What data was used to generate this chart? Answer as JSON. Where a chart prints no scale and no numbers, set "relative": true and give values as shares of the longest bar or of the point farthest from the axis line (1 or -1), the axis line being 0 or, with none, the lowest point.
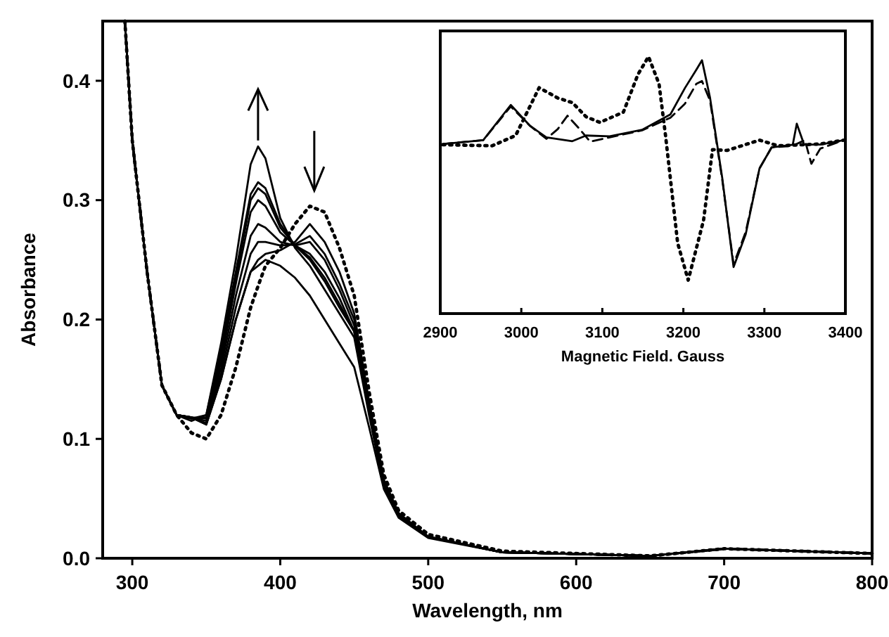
{
  "chart_data": [
    {
      "type": "line",
      "xlabel": "Wavelength, nm",
      "ylabel": "Absorbance",
      "xlim": [
        280,
        800
      ],
      "xticks": [
        300,
        400,
        500,
        600,
        700,
        800
      ],
      "ylim": [
        0,
        0.45
      ],
      "yticks": [
        {
          "value": 0,
          "label": "0.0"
        },
        0.1,
        0.2,
        0.3,
        0.4
      ],
      "grid": false,
      "x": [
        295,
        300,
        310,
        320,
        330,
        340,
        350,
        360,
        370,
        380,
        385,
        390,
        400,
        410,
        420,
        430,
        440,
        450,
        460,
        470,
        480,
        500,
        550,
        650,
        700,
        800
      ],
      "series": [
        {
          "color": "#000000",
          "line_style": "solid",
          "values": [
            0.45,
            0.35,
            0.24,
            0.145,
            0.12,
            0.115,
            0.12,
            0.18,
            0.25,
            0.33,
            0.345,
            0.335,
            0.285,
            0.26,
            0.245,
            0.225,
            0.205,
            0.185,
            0.12,
            0.06,
            0.035,
            0.018,
            0.005,
            0.002,
            0.008,
            0.004
          ]
        },
        {
          "color": "#000000",
          "line_style": "solid",
          "values": [
            0.45,
            0.35,
            0.24,
            0.145,
            0.12,
            0.117,
            0.12,
            0.175,
            0.24,
            0.305,
            0.315,
            0.31,
            0.28,
            0.262,
            0.25,
            0.232,
            0.21,
            0.19,
            0.125,
            0.062,
            0.036,
            0.018,
            0.005,
            0.002,
            0.008,
            0.004
          ]
        },
        {
          "color": "#000000",
          "line_style": "solid",
          "values": [
            0.45,
            0.35,
            0.24,
            0.145,
            0.12,
            0.117,
            0.118,
            0.17,
            0.235,
            0.3,
            0.31,
            0.305,
            0.277,
            0.262,
            0.252,
            0.235,
            0.213,
            0.19,
            0.125,
            0.062,
            0.036,
            0.018,
            0.005,
            0.002,
            0.008,
            0.004
          ]
        },
        {
          "color": "#000000",
          "line_style": "solid",
          "values": [
            0.45,
            0.35,
            0.24,
            0.145,
            0.12,
            0.118,
            0.117,
            0.165,
            0.23,
            0.29,
            0.3,
            0.295,
            0.273,
            0.262,
            0.255,
            0.24,
            0.218,
            0.19,
            0.128,
            0.063,
            0.036,
            0.018,
            0.005,
            0.002,
            0.008,
            0.004
          ]
        },
        {
          "color": "#000000",
          "line_style": "solid",
          "values": [
            0.45,
            0.35,
            0.24,
            0.145,
            0.12,
            0.118,
            0.115,
            0.16,
            0.22,
            0.27,
            0.28,
            0.277,
            0.265,
            0.262,
            0.265,
            0.25,
            0.225,
            0.195,
            0.13,
            0.064,
            0.037,
            0.018,
            0.005,
            0.002,
            0.008,
            0.004
          ]
        },
        {
          "color": "#000000",
          "line_style": "solid",
          "values": [
            0.45,
            0.35,
            0.24,
            0.145,
            0.12,
            0.118,
            0.113,
            0.155,
            0.21,
            0.255,
            0.265,
            0.265,
            0.262,
            0.263,
            0.27,
            0.255,
            0.23,
            0.2,
            0.13,
            0.065,
            0.037,
            0.018,
            0.005,
            0.002,
            0.008,
            0.004
          ]
        },
        {
          "color": "#000000",
          "line_style": "solid",
          "values": [
            0.45,
            0.35,
            0.24,
            0.145,
            0.12,
            0.118,
            0.112,
            0.15,
            0.2,
            0.24,
            0.25,
            0.255,
            0.258,
            0.265,
            0.28,
            0.265,
            0.24,
            0.205,
            0.132,
            0.066,
            0.038,
            0.018,
            0.005,
            0.002,
            0.008,
            0.004
          ]
        },
        {
          "color": "#000000",
          "line_style": "solid",
          "values": [
            0.45,
            0.35,
            0.24,
            0.145,
            0.12,
            0.118,
            0.112,
            0.15,
            0.2,
            0.24,
            0.245,
            0.25,
            0.245,
            0.235,
            0.22,
            0.2,
            0.18,
            0.16,
            0.11,
            0.058,
            0.034,
            0.017,
            0.005,
            0.002,
            0.008,
            0.004
          ]
        },
        {
          "color": "#000000",
          "line_style": "dotted",
          "values": [
            0.45,
            0.35,
            0.24,
            0.145,
            0.12,
            0.105,
            0.1,
            0.12,
            0.16,
            0.21,
            0.228,
            0.245,
            0.26,
            0.28,
            0.295,
            0.29,
            0.26,
            0.22,
            0.14,
            0.07,
            0.04,
            0.02,
            0.006,
            0.002,
            0.008,
            0.004
          ]
        }
      ]
    },
    {
      "type": "line",
      "relative": true,
      "xlabel": "Magnetic Field. Gauss",
      "xlim": [
        2900,
        3400
      ],
      "xticks": [
        2900,
        3000,
        3100,
        3200,
        3300,
        3400
      ],
      "tick_labels": "x",
      "grid": false,
      "series": [
        {
          "color": "#000000",
          "line_style": "solid",
          "x": [
            2903,
            2953,
            2987,
            3011,
            3031,
            3063,
            3080,
            3109,
            3149,
            3184,
            3202,
            3216,
            3223,
            3233,
            3248,
            3262,
            3277,
            3294,
            3309,
            3335,
            3340,
            3349,
            3369,
            3398
          ],
          "values": [
            0.66,
            0.675,
            0.812,
            0.73,
            0.686,
            0.671,
            0.693,
            0.69,
            0.715,
            0.775,
            0.878,
            0.949,
            0.986,
            0.839,
            0.528,
            0.181,
            0.309,
            0.565,
            0.647,
            0.657,
            0.739,
            0.658,
            0.658,
            0.675
          ]
        },
        {
          "color": "#000000",
          "line_style": "dashed",
          "x": [
            2903,
            2953,
            2987,
            3011,
            3031,
            3045,
            3057,
            3072,
            3085,
            3109,
            3149,
            3184,
            3202,
            3216,
            3223,
            3233,
            3248,
            3262,
            3277,
            3294,
            3309,
            3335,
            3350,
            3358,
            3369,
            3398
          ],
          "values": [
            0.66,
            0.675,
            0.806,
            0.73,
            0.68,
            0.718,
            0.77,
            0.718,
            0.669,
            0.686,
            0.713,
            0.762,
            0.817,
            0.894,
            0.905,
            0.828,
            0.521,
            0.192,
            0.318,
            0.565,
            0.647,
            0.653,
            0.675,
            0.583,
            0.642,
            0.675
          ]
        },
        {
          "color": "#000000",
          "line_style": "dotted",
          "x": [
            2903,
            2964,
            2993,
            3022,
            3045,
            3063,
            3080,
            3097,
            3126,
            3144,
            3157,
            3170,
            3178,
            3193,
            3206,
            3225,
            3236,
            3254,
            3294,
            3317,
            3369,
            3398
          ],
          "values": [
            0.657,
            0.653,
            0.693,
            0.879,
            0.839,
            0.821,
            0.766,
            0.744,
            0.784,
            0.931,
            1,
            0.894,
            0.693,
            0.274,
            0.13,
            0.364,
            0.638,
            0.635,
            0.675,
            0.653,
            0.66,
            0.675
          ]
        }
      ]
    }
  ]
}
